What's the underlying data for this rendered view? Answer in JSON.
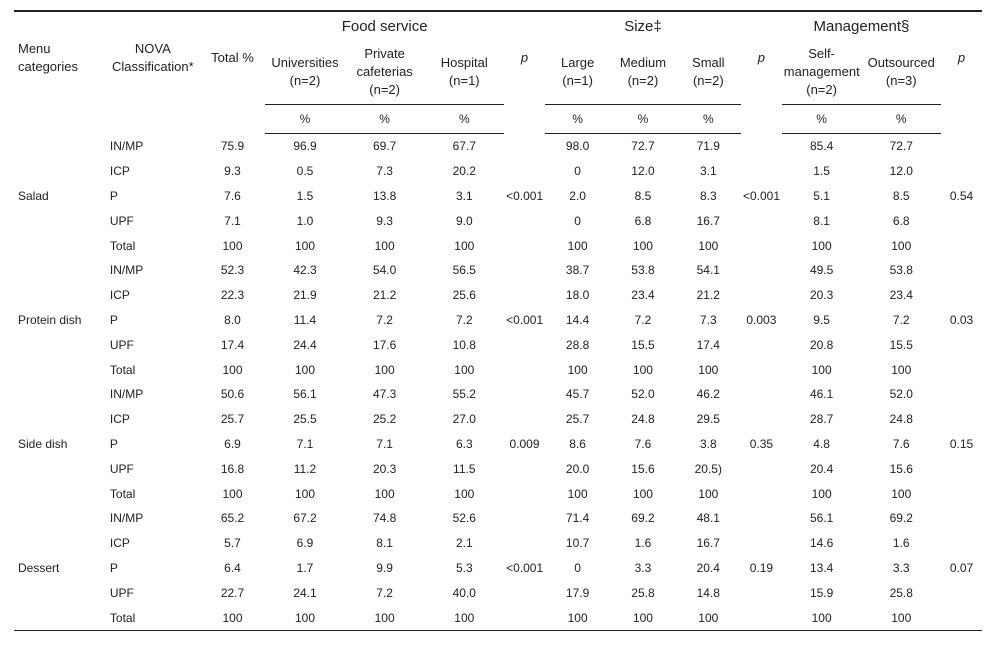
{
  "table": {
    "group_headers": {
      "food_service": "Food service",
      "size": "Size‡",
      "management": "Management§"
    },
    "column_headers": {
      "menu_categories": "Menu categories",
      "nova": "NOVA Classification*",
      "total": "Total %",
      "universities": "Universities (n=2)",
      "private_cafeterias": "Private cafeterias (n=2)",
      "hospital": "Hospital (n=1)",
      "p": "p",
      "large": "Large (n=1)",
      "medium": "Medium (n=2)",
      "small": "Small (n=2)",
      "self_mgmt": "Self-management (n=2)",
      "outsourced": "Outsourced (n=3)",
      "pct": "%"
    },
    "categories": [
      {
        "name": "Salad",
        "p_food": "<0.001",
        "p_size": "<0.001",
        "p_mgmt": "0.54",
        "rows": [
          {
            "nova": "IN/MP",
            "total": "75.9",
            "uni": "96.9",
            "priv": "69.7",
            "hosp": "67.7",
            "large": "98.0",
            "med": "72.7",
            "small": "71.9",
            "self": "85.4",
            "out": "72.7"
          },
          {
            "nova": "ICP",
            "total": "9.3",
            "uni": "0.5",
            "priv": "7.3",
            "hosp": "20.2",
            "large": "0",
            "med": "12.0",
            "small": "3.1",
            "self": "1.5",
            "out": "12.0"
          },
          {
            "nova": "P",
            "total": "7.6",
            "uni": "1.5",
            "priv": "13.8",
            "hosp": "3.1",
            "large": "2.0",
            "med": "8.5",
            "small": "8.3",
            "self": "5.1",
            "out": "8.5"
          },
          {
            "nova": "UPF",
            "total": "7.1",
            "uni": "1.0",
            "priv": "9.3",
            "hosp": "9.0",
            "large": "0",
            "med": "6.8",
            "small": "16.7",
            "self": "8.1",
            "out": "6.8"
          },
          {
            "nova": "Total",
            "total": "100",
            "uni": "100",
            "priv": "100",
            "hosp": "100",
            "large": "100",
            "med": "100",
            "small": "100",
            "self": "100",
            "out": "100"
          }
        ]
      },
      {
        "name": "Protein dish",
        "p_food": "<0.001",
        "p_size": "0.003",
        "p_mgmt": "0.03",
        "rows": [
          {
            "nova": "IN/MP",
            "total": "52.3",
            "uni": "42.3",
            "priv": "54.0",
            "hosp": "56.5",
            "large": "38.7",
            "med": "53.8",
            "small": "54.1",
            "self": "49.5",
            "out": "53.8"
          },
          {
            "nova": "ICP",
            "total": "22.3",
            "uni": "21.9",
            "priv": "21.2",
            "hosp": "25.6",
            "large": "18.0",
            "med": "23.4",
            "small": "21.2",
            "self": "20.3",
            "out": "23.4"
          },
          {
            "nova": "P",
            "total": "8.0",
            "uni": "11.4",
            "priv": "7.2",
            "hosp": "7.2",
            "large": "14.4",
            "med": "7.2",
            "small": "7.3",
            "self": "9.5",
            "out": "7.2"
          },
          {
            "nova": "UPF",
            "total": "17.4",
            "uni": "24.4",
            "priv": "17.6",
            "hosp": "10.8",
            "large": "28.8",
            "med": "15.5",
            "small": "17.4",
            "self": "20.8",
            "out": "15.5"
          },
          {
            "nova": "Total",
            "total": "100",
            "uni": "100",
            "priv": "100",
            "hosp": "100",
            "large": "100",
            "med": "100",
            "small": "100",
            "self": "100",
            "out": "100"
          }
        ]
      },
      {
        "name": "Side dish",
        "p_food": "0.009",
        "p_size": "0.35",
        "p_mgmt": "0.15",
        "rows": [
          {
            "nova": "IN/MP",
            "total": "50.6",
            "uni": "56.1",
            "priv": "47.3",
            "hosp": "55.2",
            "large": "45.7",
            "med": "52.0",
            "small": "46.2",
            "self": "46.1",
            "out": "52.0"
          },
          {
            "nova": "ICP",
            "total": "25.7",
            "uni": "25.5",
            "priv": "25.2",
            "hosp": "27.0",
            "large": "25.7",
            "med": "24.8",
            "small": "29.5",
            "self": "28.7",
            "out": "24.8"
          },
          {
            "nova": "P",
            "total": "6.9",
            "uni": "7.1",
            "priv": "7.1",
            "hosp": "6.3",
            "large": "8.6",
            "med": "7.6",
            "small": "3.8",
            "self": "4.8",
            "out": "7.6"
          },
          {
            "nova": "UPF",
            "total": "16.8",
            "uni": "11.2",
            "priv": "20.3",
            "hosp": "11.5",
            "large": "20.0",
            "med": "15.6",
            "small": "20.5)",
            "self": "20.4",
            "out": "15.6"
          },
          {
            "nova": "Total",
            "total": "100",
            "uni": "100",
            "priv": "100",
            "hosp": "100",
            "large": "100",
            "med": "100",
            "small": "100",
            "self": "100",
            "out": "100"
          }
        ]
      },
      {
        "name": "Dessert",
        "p_food": "<0.001",
        "p_size": "0.19",
        "p_mgmt": "0.07",
        "rows": [
          {
            "nova": "IN/MP",
            "total": "65.2",
            "uni": "67.2",
            "priv": "74.8",
            "hosp": "52.6",
            "large": "71.4",
            "med": "69.2",
            "small": "48.1",
            "self": "56.1",
            "out": "69.2"
          },
          {
            "nova": "ICP",
            "total": "5.7",
            "uni": "6.9",
            "priv": "8.1",
            "hosp": "2.1",
            "large": "10.7",
            "med": "1.6",
            "small": "16.7",
            "self": "14.6",
            "out": "1.6"
          },
          {
            "nova": "P",
            "total": "6.4",
            "uni": "1.7",
            "priv": "9.9",
            "hosp": "5.3",
            "large": "0",
            "med": "3.3",
            "small": "20.4",
            "self": "13.4",
            "out": "3.3"
          },
          {
            "nova": "UPF",
            "total": "22.7",
            "uni": "24.1",
            "priv": "7.2",
            "hosp": "40.0",
            "large": "17.9",
            "med": "25.8",
            "small": "14.8",
            "self": "15.9",
            "out": "25.8"
          },
          {
            "nova": "Total",
            "total": "100",
            "uni": "100",
            "priv": "100",
            "hosp": "100",
            "large": "100",
            "med": "100",
            "small": "100",
            "self": "100",
            "out": "100"
          }
        ]
      }
    ]
  },
  "style": {
    "text_color": "#222222",
    "rule_color": "#222222",
    "font_size_body": 12,
    "font_size_header": 13,
    "background": "#ffffff"
  }
}
